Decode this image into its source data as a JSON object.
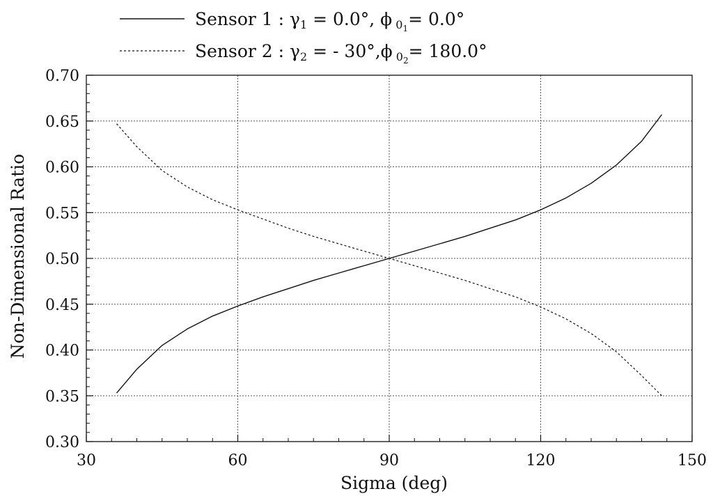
{
  "chart_data": {
    "type": "line",
    "xlabel": "Sigma (deg)",
    "ylabel": "Non-Dimensional Ratio",
    "xlim": [
      30,
      150
    ],
    "ylim": [
      0.3,
      0.7
    ],
    "xticks": [
      30,
      60,
      90,
      120,
      150
    ],
    "yticks": [
      0.3,
      0.35,
      0.4,
      0.45,
      0.5,
      0.55,
      0.6,
      0.65,
      0.7
    ],
    "grid": true,
    "legend_position": "top",
    "series": [
      {
        "name": "Sensor 1 : γ1 = 0.0°, ϕ 0 1= 0.0°",
        "line_style": "solid",
        "x": [
          36,
          40,
          45,
          50,
          55,
          60,
          65,
          70,
          75,
          80,
          85,
          90,
          95,
          100,
          105,
          110,
          115,
          120,
          125,
          130,
          135,
          140,
          144
        ],
        "y": [
          0.353,
          0.379,
          0.405,
          0.423,
          0.437,
          0.448,
          0.458,
          0.467,
          0.476,
          0.484,
          0.492,
          0.5,
          0.508,
          0.516,
          0.524,
          0.533,
          0.542,
          0.553,
          0.566,
          0.582,
          0.602,
          0.628,
          0.657
        ]
      },
      {
        "name": "Sensor 2 : γ2 = - 30°,ϕ 0 2= 180.0°",
        "line_style": "dashed",
        "x": [
          36,
          40,
          45,
          50,
          55,
          60,
          65,
          70,
          75,
          80,
          85,
          90,
          95,
          100,
          105,
          110,
          115,
          120,
          125,
          130,
          135,
          140,
          144
        ],
        "y": [
          0.647,
          0.622,
          0.596,
          0.578,
          0.564,
          0.553,
          0.543,
          0.533,
          0.524,
          0.516,
          0.508,
          0.5,
          0.492,
          0.484,
          0.476,
          0.467,
          0.458,
          0.447,
          0.434,
          0.418,
          0.398,
          0.372,
          0.35
        ]
      }
    ],
    "legend": {
      "s1_prefix": "Sensor 1 : ",
      "s1_gamma": "γ",
      "s1_gamma_sub": "1",
      "s1_mid": " = 0.0°, ",
      "s1_phi": "ϕ",
      "s1_phi_sub": " 0",
      "s1_phi_subsub": "1",
      "s1_end": "= 0.0°",
      "s2_prefix": "Sensor 2 : ",
      "s2_gamma": "γ",
      "s2_gamma_sub": "2",
      "s2_mid": " = - 30°,",
      "s2_phi": "ϕ",
      "s2_phi_sub": " 0",
      "s2_phi_subsub": "2",
      "s2_end": "= 180.0°"
    }
  }
}
